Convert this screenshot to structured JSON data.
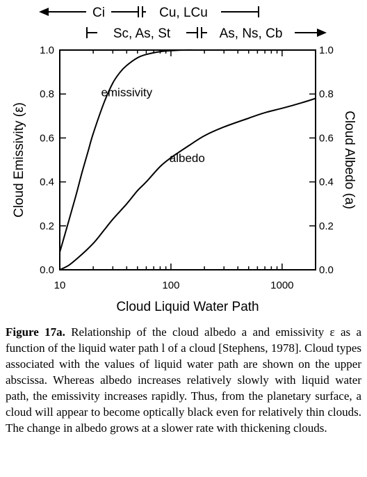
{
  "cloud_type_bands": {
    "top_row": [
      "Ci",
      "Cu, LCu"
    ],
    "second_row": [
      "Sc, As, St",
      "As, Ns, Cb"
    ]
  },
  "chart_data": {
    "type": "line",
    "xlabel": "Cloud Liquid Water Path",
    "ylabel_left": "Cloud Emissivity (ε)",
    "ylabel_right": "Cloud Albedo (a)",
    "xscale": "log",
    "xlim": [
      10,
      2000
    ],
    "ylim": [
      0,
      1
    ],
    "xticks": [
      10,
      100,
      1000
    ],
    "xtick_labels": [
      "10",
      "100",
      "1000"
    ],
    "yticks": [
      0,
      0.2,
      0.4,
      0.6,
      0.8,
      1.0
    ],
    "ytick_labels": [
      "0.0",
      "0.2",
      "0.4",
      "0.6",
      "0.8",
      "1.0"
    ],
    "grid": false,
    "series": [
      {
        "name": "emissivity",
        "x": [
          10,
          12,
          14,
          16,
          18,
          20,
          25,
          30,
          35,
          40,
          50,
          60,
          80,
          100,
          130,
          200,
          500,
          1000,
          2000
        ],
        "y": [
          0.08,
          0.22,
          0.34,
          0.45,
          0.54,
          0.62,
          0.76,
          0.85,
          0.9,
          0.93,
          0.965,
          0.98,
          0.993,
          0.997,
          1.0,
          1.0,
          1.0,
          1.0,
          1.0
        ]
      },
      {
        "name": "albedo",
        "x": [
          10,
          12,
          15,
          20,
          25,
          30,
          40,
          50,
          60,
          80,
          100,
          150,
          200,
          300,
          500,
          700,
          1000,
          1500,
          2000
        ],
        "y": [
          0.0,
          0.02,
          0.06,
          0.12,
          0.18,
          0.23,
          0.3,
          0.36,
          0.4,
          0.47,
          0.51,
          0.57,
          0.61,
          0.65,
          0.69,
          0.715,
          0.735,
          0.76,
          0.78
        ]
      }
    ]
  },
  "caption": {
    "label": "Figure 17a.",
    "text": "Relationship of the cloud albedo a and emissivity ε as a function of the liquid water path l of a cloud [Stephens, 1978]. Cloud types associated with the values of liquid water path are shown on the upper abscissa. Whereas albedo increases relatively slowly with liquid water path, the emissivity increases rapidly. Thus, from the planetary surface, a cloud will appear to become optically black even for relatively thin clouds. The change in albedo grows at a slower rate with thickening clouds."
  }
}
